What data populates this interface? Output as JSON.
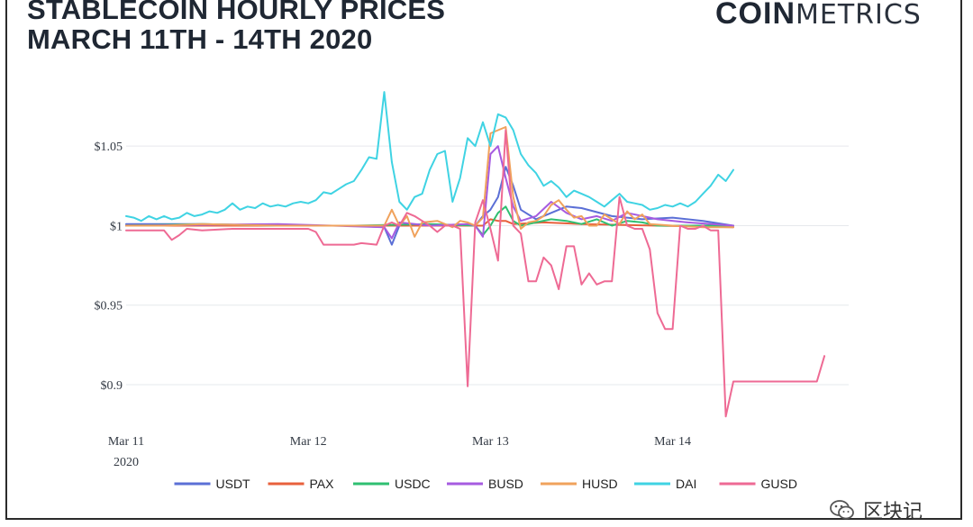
{
  "header": {
    "title_line1": "STABLECOIN HOURLY PRICES",
    "title_line2": "MARCH 11TH - 14TH 2020"
  },
  "logo": {
    "bold": "COIN",
    "light": "METRICS"
  },
  "watermark": {
    "text": "区块记",
    "icon": "wechat-icon"
  },
  "chart_data": {
    "type": "line",
    "title": "STABLECOIN HOURLY PRICES MARCH 11TH - 14TH 2020",
    "xlabel": "",
    "ylabel": "",
    "x_range_hours": [
      0,
      80
    ],
    "ylim": [
      0.87,
      1.092
    ],
    "y_ticks": [
      {
        "value": 1.05,
        "label": "$1.05"
      },
      {
        "value": 1.0,
        "label": "$1"
      },
      {
        "value": 0.95,
        "label": "$0.95"
      },
      {
        "value": 0.9,
        "label": "$0.9"
      }
    ],
    "x_ticks": [
      {
        "value": 0,
        "label": "Mar 11",
        "sublabel": "2020"
      },
      {
        "value": 24,
        "label": "Mar 12",
        "sublabel": ""
      },
      {
        "value": 48,
        "label": "Mar 13",
        "sublabel": ""
      },
      {
        "value": 72,
        "label": "Mar 14",
        "sublabel": ""
      }
    ],
    "grid": true,
    "legend_position": "bottom",
    "series": [
      {
        "name": "USDT",
        "color": "#5b6fd6",
        "points": [
          [
            0,
            1.001
          ],
          [
            10,
            1.001
          ],
          [
            20,
            1.0
          ],
          [
            30,
            1.0
          ],
          [
            34,
            0.999
          ],
          [
            35,
            0.988
          ],
          [
            36,
            1.0
          ],
          [
            42,
            1.0
          ],
          [
            46,
            1.0
          ],
          [
            47,
            1.006
          ],
          [
            48,
            1.01
          ],
          [
            49,
            1.018
          ],
          [
            50,
            1.037
          ],
          [
            51,
            1.025
          ],
          [
            52,
            1.01
          ],
          [
            54,
            1.004
          ],
          [
            56,
            1.008
          ],
          [
            58,
            1.012
          ],
          [
            60,
            1.011
          ],
          [
            64,
            1.006
          ],
          [
            68,
            1.004
          ],
          [
            72,
            1.005
          ],
          [
            76,
            1.003
          ],
          [
            80,
            1.0
          ]
        ]
      },
      {
        "name": "PAX",
        "color": "#e8603c",
        "points": [
          [
            0,
            1.0
          ],
          [
            20,
            1.0
          ],
          [
            35,
            1.0
          ],
          [
            47,
            1.0
          ],
          [
            48,
            1.004
          ],
          [
            49,
            1.003
          ],
          [
            50,
            1.003
          ],
          [
            51,
            1.001
          ],
          [
            55,
            1.002
          ],
          [
            60,
            1.001
          ],
          [
            70,
            1.0
          ],
          [
            80,
            0.999
          ]
        ]
      },
      {
        "name": "USDC",
        "color": "#2fbf71",
        "points": [
          [
            0,
            1.0
          ],
          [
            10,
            1.001
          ],
          [
            20,
            1.0
          ],
          [
            30,
            1.0
          ],
          [
            40,
            1.001
          ],
          [
            46,
            1.0
          ],
          [
            47,
            0.994
          ],
          [
            48,
            1.0
          ],
          [
            49,
            1.008
          ],
          [
            50,
            1.012
          ],
          [
            51,
            1.003
          ],
          [
            52,
            1.0
          ],
          [
            54,
            1.002
          ],
          [
            56,
            1.004
          ],
          [
            58,
            1.003
          ],
          [
            60,
            1.001
          ],
          [
            62,
            1.004
          ],
          [
            64,
            1.0
          ],
          [
            66,
            1.003
          ],
          [
            68,
            1.002
          ],
          [
            70,
            1.0
          ],
          [
            75,
            1.0
          ],
          [
            80,
            1.0
          ]
        ]
      },
      {
        "name": "BUSD",
        "color": "#a65be0",
        "points": [
          [
            0,
            1.0
          ],
          [
            20,
            1.001
          ],
          [
            34,
            0.999
          ],
          [
            35,
            0.992
          ],
          [
            36,
            1.002
          ],
          [
            40,
            1.0
          ],
          [
            45,
            1.001
          ],
          [
            46,
            1.0
          ],
          [
            47,
            0.993
          ],
          [
            48,
            1.045
          ],
          [
            49,
            1.05
          ],
          [
            50,
            1.03
          ],
          [
            51,
            1.012
          ],
          [
            52,
            1.003
          ],
          [
            54,
            1.006
          ],
          [
            56,
            1.015
          ],
          [
            58,
            1.008
          ],
          [
            60,
            1.004
          ],
          [
            62,
            1.006
          ],
          [
            64,
            1.003
          ],
          [
            66,
            1.008
          ],
          [
            70,
            1.004
          ],
          [
            74,
            1.002
          ],
          [
            80,
            1.0
          ]
        ]
      },
      {
        "name": "HUSD",
        "color": "#f0a25c",
        "points": [
          [
            0,
            1.0
          ],
          [
            5,
            1.0
          ],
          [
            10,
            1.001
          ],
          [
            20,
            1.0
          ],
          [
            30,
            1.0
          ],
          [
            34,
            1.0
          ],
          [
            35,
            1.01
          ],
          [
            36,
            1.0
          ],
          [
            37,
            1.006
          ],
          [
            38,
            0.993
          ],
          [
            39,
            1.002
          ],
          [
            41,
            1.003
          ],
          [
            43,
            0.999
          ],
          [
            44,
            1.003
          ],
          [
            45,
            1.002
          ],
          [
            46,
            1.0
          ],
          [
            47,
            1.005
          ],
          [
            48,
            1.058
          ],
          [
            49,
            1.06
          ],
          [
            50,
            1.062
          ],
          [
            51,
            1.018
          ],
          [
            52,
            0.998
          ],
          [
            53,
            1.002
          ],
          [
            54,
            1.003
          ],
          [
            55,
            1.006
          ],
          [
            56,
            1.013
          ],
          [
            57,
            1.016
          ],
          [
            58,
            1.01
          ],
          [
            59,
            1.005
          ],
          [
            60,
            1.006
          ],
          [
            61,
            1.0
          ],
          [
            62,
            1.0
          ],
          [
            63,
            1.007
          ],
          [
            64,
            1.004
          ],
          [
            65,
            1.001
          ],
          [
            66,
            1.009
          ],
          [
            67,
            1.004
          ],
          [
            68,
            1.007
          ],
          [
            69,
            1.001
          ],
          [
            72,
            1.0
          ],
          [
            76,
            0.999
          ],
          [
            80,
            0.999
          ]
        ]
      },
      {
        "name": "DAI",
        "color": "#3fd3e3",
        "points": [
          [
            0,
            1.006
          ],
          [
            1,
            1.005
          ],
          [
            2,
            1.003
          ],
          [
            3,
            1.006
          ],
          [
            4,
            1.004
          ],
          [
            5,
            1.006
          ],
          [
            6,
            1.004
          ],
          [
            7,
            1.005
          ],
          [
            8,
            1.008
          ],
          [
            9,
            1.006
          ],
          [
            10,
            1.007
          ],
          [
            11,
            1.009
          ],
          [
            12,
            1.008
          ],
          [
            13,
            1.01
          ],
          [
            14,
            1.014
          ],
          [
            15,
            1.01
          ],
          [
            16,
            1.012
          ],
          [
            17,
            1.011
          ],
          [
            18,
            1.014
          ],
          [
            19,
            1.012
          ],
          [
            20,
            1.013
          ],
          [
            21,
            1.012
          ],
          [
            22,
            1.014
          ],
          [
            23,
            1.015
          ],
          [
            24,
            1.014
          ],
          [
            25,
            1.016
          ],
          [
            26,
            1.021
          ],
          [
            27,
            1.02
          ],
          [
            28,
            1.023
          ],
          [
            29,
            1.026
          ],
          [
            30,
            1.028
          ],
          [
            31,
            1.035
          ],
          [
            32,
            1.043
          ],
          [
            33,
            1.042
          ],
          [
            34,
            1.084
          ],
          [
            35,
            1.04
          ],
          [
            36,
            1.015
          ],
          [
            37,
            1.01
          ],
          [
            38,
            1.018
          ],
          [
            39,
            1.02
          ],
          [
            40,
            1.035
          ],
          [
            41,
            1.045
          ],
          [
            42,
            1.047
          ],
          [
            43,
            1.015
          ],
          [
            44,
            1.03
          ],
          [
            45,
            1.055
          ],
          [
            46,
            1.05
          ],
          [
            47,
            1.065
          ],
          [
            48,
            1.05
          ],
          [
            49,
            1.07
          ],
          [
            50,
            1.068
          ],
          [
            51,
            1.06
          ],
          [
            52,
            1.045
          ],
          [
            53,
            1.038
          ],
          [
            54,
            1.033
          ],
          [
            55,
            1.025
          ],
          [
            56,
            1.028
          ],
          [
            57,
            1.024
          ],
          [
            58,
            1.018
          ],
          [
            59,
            1.022
          ],
          [
            60,
            1.02
          ],
          [
            61,
            1.018
          ],
          [
            62,
            1.015
          ],
          [
            63,
            1.012
          ],
          [
            64,
            1.016
          ],
          [
            65,
            1.02
          ],
          [
            66,
            1.015
          ],
          [
            67,
            1.014
          ],
          [
            68,
            1.013
          ],
          [
            69,
            1.01
          ],
          [
            70,
            1.011
          ],
          [
            71,
            1.013
          ],
          [
            72,
            1.012
          ],
          [
            73,
            1.014
          ],
          [
            74,
            1.012
          ],
          [
            75,
            1.015
          ],
          [
            76,
            1.02
          ],
          [
            77,
            1.025
          ],
          [
            78,
            1.032
          ],
          [
            79,
            1.028
          ],
          [
            80,
            1.035
          ]
        ]
      },
      {
        "name": "GUSD",
        "color": "#ee6a94",
        "points": [
          [
            0,
            0.997
          ],
          [
            5,
            0.997
          ],
          [
            6,
            0.991
          ],
          [
            7,
            0.994
          ],
          [
            8,
            0.998
          ],
          [
            10,
            0.997
          ],
          [
            14,
            0.998
          ],
          [
            24,
            0.998
          ],
          [
            25,
            0.996
          ],
          [
            26,
            0.988
          ],
          [
            30,
            0.988
          ],
          [
            31,
            0.989
          ],
          [
            33,
            0.988
          ],
          [
            34,
            1.0
          ],
          [
            35,
            1.002
          ],
          [
            36,
            1.0
          ],
          [
            37,
            1.008
          ],
          [
            38,
            1.006
          ],
          [
            39,
            1.003
          ],
          [
            40,
            1.0
          ],
          [
            41,
            0.996
          ],
          [
            42,
            1.0
          ],
          [
            43,
            1.0
          ],
          [
            44,
            0.998
          ],
          [
            45,
            0.899
          ],
          [
            46,
            1.002
          ],
          [
            47,
            1.016
          ],
          [
            48,
            0.998
          ],
          [
            49,
            0.978
          ],
          [
            50,
            1.06
          ],
          [
            51,
            1.0
          ],
          [
            52,
            0.995
          ],
          [
            53,
            0.965
          ],
          [
            54,
            0.965
          ],
          [
            55,
            0.98
          ],
          [
            56,
            0.975
          ],
          [
            57,
            0.96
          ],
          [
            58,
            0.987
          ],
          [
            59,
            0.987
          ],
          [
            60,
            0.963
          ],
          [
            61,
            0.97
          ],
          [
            62,
            0.963
          ],
          [
            63,
            0.965
          ],
          [
            64,
            0.965
          ],
          [
            65,
            1.018
          ],
          [
            66,
            1.0
          ],
          [
            67,
            0.998
          ],
          [
            68,
            0.998
          ],
          [
            69,
            0.985
          ],
          [
            70,
            0.945
          ],
          [
            71,
            0.935
          ],
          [
            72,
            0.935
          ],
          [
            73,
            1.0
          ],
          [
            74,
            0.998
          ],
          [
            75,
            0.998
          ],
          [
            76,
            1.0
          ],
          [
            77,
            0.997
          ],
          [
            78,
            0.997
          ],
          [
            79,
            0.88
          ],
          [
            80,
            0.902
          ],
          [
            81,
            0.902
          ],
          [
            85,
            0.902
          ],
          [
            88,
            0.902
          ],
          [
            89,
            0.902
          ],
          [
            90,
            0.902
          ],
          [
            91,
            0.902
          ],
          [
            92,
            0.918
          ]
        ]
      }
    ]
  }
}
